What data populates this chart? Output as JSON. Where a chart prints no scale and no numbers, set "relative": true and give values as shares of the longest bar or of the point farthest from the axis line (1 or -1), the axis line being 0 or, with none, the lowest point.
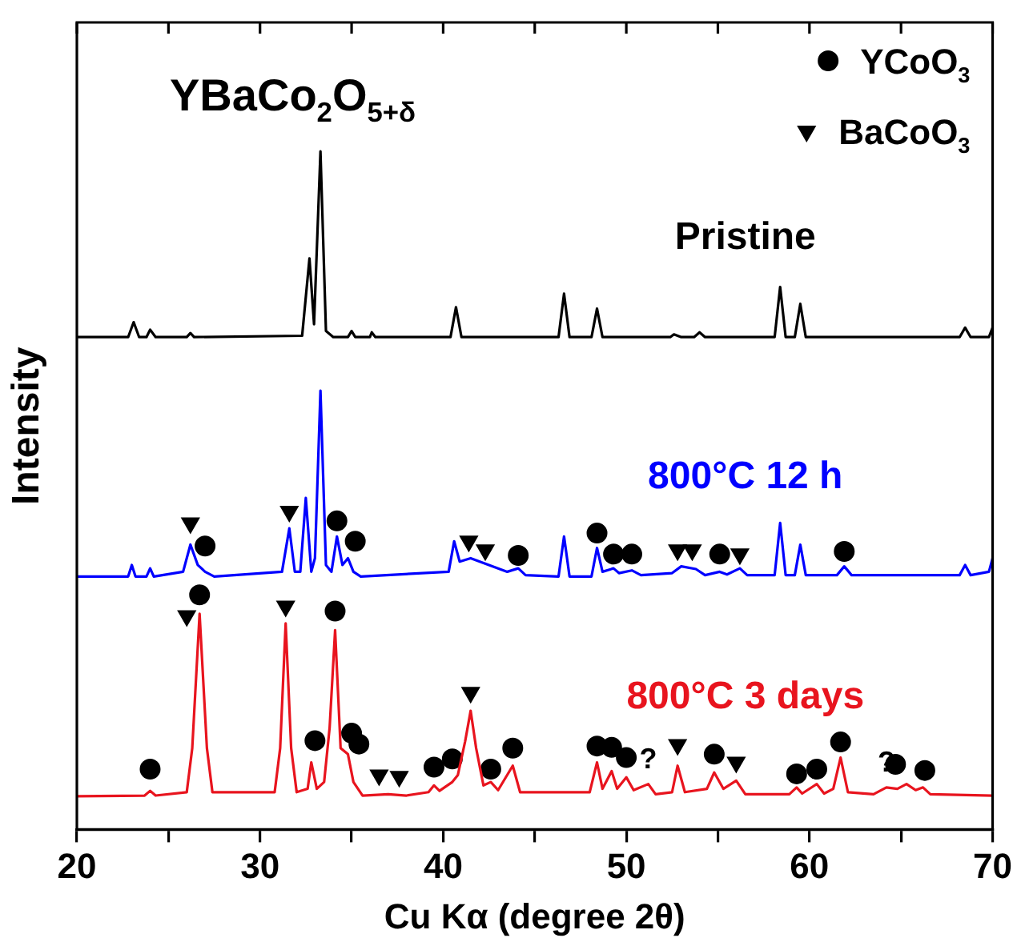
{
  "chart_data": {
    "type": "line",
    "title": "YBaCo$_{2}$O$_{5+δ}$",
    "xlabel": "Cu Kα (degree 2θ)",
    "ylabel": "Intensity",
    "relative": true,
    "legend": "top right",
    "marker": "none",
    "xlim": [
      20,
      70
    ],
    "xticks": [
      20,
      {
        "value": 25,
        "label": null
      },
      30,
      {
        "value": 35,
        "label": null
      },
      40,
      {
        "value": 45,
        "label": null
      },
      50,
      {
        "value": 55,
        "label": null
      },
      60,
      {
        "value": 65,
        "label": null
      },
      70
    ],
    "series": [
      {
        "name": "Pristine",
        "color": "#000000",
        "x": [
          20,
          22.8,
          23.1,
          23.4,
          23.8,
          24.0,
          24.3,
          26.0,
          26.2,
          26.4,
          32.3,
          32.7,
          32.95,
          33.3,
          33.6,
          34.0,
          34.8,
          35.0,
          35.2,
          36.0,
          36.1,
          36.3,
          40.4,
          40.7,
          41.0,
          46.3,
          46.6,
          46.9,
          48.1,
          48.4,
          48.7,
          52.4,
          52.6,
          53.0,
          53.7,
          54.0,
          54.3,
          58.1,
          58.4,
          58.7,
          59.2,
          59.5,
          59.8,
          68.2,
          68.5,
          68.8,
          69.8,
          70
        ],
        "values": [
          0.726,
          0.726,
          0.748,
          0.726,
          0.726,
          0.737,
          0.726,
          0.726,
          0.732,
          0.726,
          0.728,
          0.842,
          0.745,
          1.0,
          0.735,
          0.726,
          0.726,
          0.735,
          0.726,
          0.726,
          0.733,
          0.726,
          0.726,
          0.77,
          0.726,
          0.726,
          0.79,
          0.726,
          0.726,
          0.768,
          0.726,
          0.726,
          0.73,
          0.726,
          0.726,
          0.733,
          0.726,
          0.726,
          0.8,
          0.726,
          0.726,
          0.775,
          0.726,
          0.726,
          0.74,
          0.726,
          0.726,
          0.74
        ]
      },
      {
        "name": "800°C 12 h",
        "color": "#0000ff",
        "x": [
          20,
          22.8,
          23.0,
          23.2,
          23.8,
          24.0,
          24.2,
          25.8,
          26.2,
          26.6,
          27.0,
          27.5,
          31.2,
          31.6,
          31.9,
          32.2,
          32.5,
          32.8,
          33.0,
          33.3,
          33.6,
          33.9,
          34.2,
          34.5,
          34.8,
          35.1,
          35.5,
          40.3,
          40.6,
          40.9,
          41.5,
          42.5,
          43.5,
          44.1,
          44.5,
          46.3,
          46.6,
          46.9,
          48.1,
          48.4,
          48.7,
          49.3,
          49.6,
          50.3,
          50.8,
          52.5,
          53.0,
          53.8,
          54.3,
          55.1,
          55.5,
          56.2,
          56.6,
          58.1,
          58.4,
          58.7,
          59.2,
          59.5,
          59.8,
          61.5,
          61.9,
          62.3,
          68.2,
          68.5,
          68.8,
          69.8,
          70
        ],
        "values": [
          0.373,
          0.373,
          0.39,
          0.373,
          0.373,
          0.385,
          0.373,
          0.38,
          0.42,
          0.39,
          0.38,
          0.373,
          0.38,
          0.444,
          0.38,
          0.38,
          0.489,
          0.38,
          0.4,
          0.647,
          0.39,
          0.38,
          0.432,
          0.39,
          0.4,
          0.38,
          0.373,
          0.38,
          0.425,
          0.395,
          0.4,
          0.39,
          0.38,
          0.385,
          0.375,
          0.373,
          0.432,
          0.373,
          0.373,
          0.415,
          0.38,
          0.385,
          0.378,
          0.382,
          0.375,
          0.378,
          0.388,
          0.384,
          0.375,
          0.38,
          0.376,
          0.385,
          0.375,
          0.375,
          0.452,
          0.375,
          0.375,
          0.42,
          0.375,
          0.375,
          0.388,
          0.375,
          0.375,
          0.39,
          0.375,
          0.38,
          0.4
        ]
      },
      {
        "name": "800°C 3 days",
        "color": "#e8141e",
        "x": [
          20,
          23.7,
          24.0,
          24.3,
          26.0,
          26.3,
          26.7,
          27.1,
          27.4,
          30.8,
          31.1,
          31.4,
          31.7,
          32.0,
          32.6,
          32.8,
          33.1,
          33.5,
          33.8,
          34.1,
          34.4,
          34.8,
          35.1,
          35.6,
          37.0,
          38.0,
          39.2,
          39.5,
          39.8,
          40.5,
          40.8,
          41.2,
          41.5,
          41.8,
          42.2,
          42.6,
          43.0,
          43.8,
          44.2,
          48.0,
          48.4,
          48.7,
          49.2,
          49.5,
          50.0,
          50.4,
          51.2,
          51.6,
          52.5,
          52.8,
          53.2,
          54.4,
          54.8,
          55.3,
          56.0,
          56.5,
          58.9,
          59.3,
          59.6,
          60.4,
          60.8,
          61.3,
          61.7,
          62.1,
          63.5,
          64.2,
          64.8,
          65.3,
          65.8,
          66.2,
          66.6,
          70
        ],
        "values": [
          0.049,
          0.05,
          0.057,
          0.05,
          0.055,
          0.12,
          0.318,
          0.12,
          0.055,
          0.055,
          0.12,
          0.304,
          0.12,
          0.055,
          0.06,
          0.099,
          0.06,
          0.07,
          0.15,
          0.294,
          0.12,
          0.111,
          0.07,
          0.05,
          0.052,
          0.05,
          0.055,
          0.065,
          0.057,
          0.07,
          0.08,
          0.13,
          0.175,
          0.12,
          0.065,
          0.07,
          0.058,
          0.094,
          0.055,
          0.055,
          0.099,
          0.06,
          0.086,
          0.06,
          0.077,
          0.058,
          0.067,
          0.052,
          0.055,
          0.094,
          0.055,
          0.06,
          0.084,
          0.06,
          0.072,
          0.052,
          0.052,
          0.062,
          0.053,
          0.067,
          0.053,
          0.06,
          0.106,
          0.055,
          0.052,
          0.062,
          0.06,
          0.067,
          0.058,
          0.062,
          0.052,
          0.05
        ]
      },
      {
        "type": "scatter",
        "name": "YCoO$_{3}$",
        "color": "#000000",
        "marker": "circle",
        "x": [
          27.0,
          34.2,
          35.2,
          44.1,
          48.4,
          49.3,
          50.3,
          55.1,
          61.9,
          26.7,
          34.1,
          24.0,
          33.0,
          35.0,
          35.4,
          39.5,
          40.5,
          42.6,
          43.8,
          48.4,
          49.2,
          50.0,
          54.8,
          59.3,
          60.4,
          61.7,
          64.7,
          66.3
        ],
        "values": [
          0.418,
          0.455,
          0.425,
          0.404,
          0.437,
          0.406,
          0.406,
          0.406,
          0.41,
          0.346,
          0.322,
          0.089,
          0.131,
          0.142,
          0.126,
          0.092,
          0.104,
          0.089,
          0.12,
          0.123,
          0.121,
          0.106,
          0.111,
          0.082,
          0.089,
          0.129,
          0.096,
          0.087
        ]
      },
      {
        "type": "scatter",
        "name": "BaCoO$_{3}$",
        "color": "#000000",
        "marker": "triangle",
        "x": [
          26.2,
          31.6,
          41.4,
          42.3,
          52.8,
          53.6,
          56.2,
          26.0,
          31.4,
          41.5,
          36.5,
          37.6,
          52.8,
          56.0
        ],
        "values": [
          0.452,
          0.469,
          0.425,
          0.412,
          0.412,
          0.412,
          0.406,
          0.315,
          0.329,
          0.202,
          0.08,
          0.078,
          0.125,
          0.099
        ]
      }
    ],
    "annotations": [
      {
        "text": "?",
        "x": 51.2,
        "y": 0.067
      },
      {
        "text": "?",
        "x": 64.2,
        "y": 0.062
      }
    ]
  }
}
